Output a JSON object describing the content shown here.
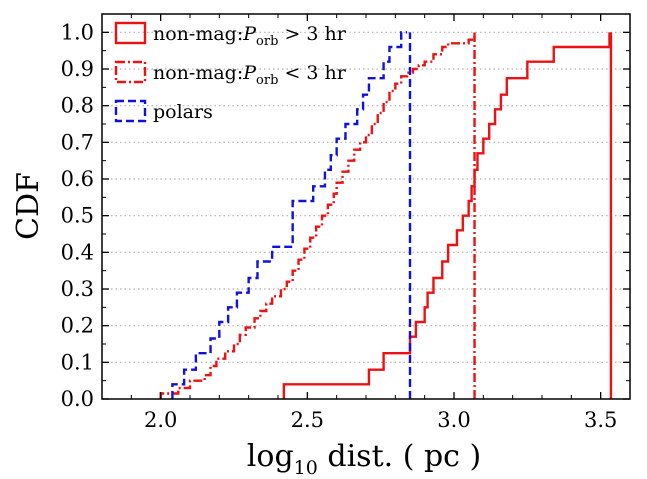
{
  "chart_data": {
    "type": "line",
    "step": true,
    "xlabel_parts": {
      "main": "log",
      "sub": "10",
      "rest": " dist. ( pc )"
    },
    "ylabel": "CDF",
    "xlim": [
      1.8,
      3.6
    ],
    "ylim": [
      0.0,
      1.05
    ],
    "xticks": [
      "2.0",
      "2.5",
      "3.0",
      "3.5"
    ],
    "yticks": [
      "0.0",
      "0.1",
      "0.2",
      "0.3",
      "0.4",
      "0.5",
      "0.6",
      "0.7",
      "0.8",
      "0.9",
      "1.0"
    ],
    "grid": "horizontal-dotted",
    "legend_position": "top-left",
    "series": [
      {
        "key": "nonmag_long",
        "legend": {
          "prefix": "non-mag:",
          "P": "P",
          "sub": "orb",
          "rel": " > 3 hr"
        },
        "color": "#ee1111",
        "linestyle": "solid",
        "x": [
          2.42,
          2.71,
          2.76,
          2.85,
          2.87,
          2.9,
          2.91,
          2.93,
          2.96,
          2.98,
          3.01,
          3.03,
          3.05,
          3.06,
          3.07,
          3.08,
          3.1,
          3.12,
          3.14,
          3.16,
          3.18,
          3.19,
          3.2,
          3.25,
          3.29,
          3.34,
          3.53
        ],
        "y": [
          0.04,
          0.08,
          0.125,
          0.17,
          0.21,
          0.25,
          0.29,
          0.33,
          0.375,
          0.42,
          0.46,
          0.5,
          0.54,
          0.58,
          0.625,
          0.67,
          0.71,
          0.75,
          0.79,
          0.83,
          0.875,
          0.875,
          0.875,
          0.92,
          0.92,
          0.96,
          1.0
        ]
      },
      {
        "key": "nonmag_short",
        "legend": {
          "prefix": "non-mag:",
          "P": "P",
          "sub": "orb",
          "rel": " < 3 hr"
        },
        "color": "#ee1111",
        "linestyle": "dashdot",
        "x": [
          2.0,
          2.06,
          2.1,
          2.15,
          2.17,
          2.19,
          2.22,
          2.25,
          2.27,
          2.29,
          2.32,
          2.34,
          2.36,
          2.38,
          2.41,
          2.43,
          2.45,
          2.47,
          2.49,
          2.51,
          2.53,
          2.55,
          2.57,
          2.59,
          2.6,
          2.62,
          2.64,
          2.66,
          2.68,
          2.7,
          2.72,
          2.74,
          2.76,
          2.78,
          2.8,
          2.82,
          2.84,
          2.86,
          2.88,
          2.9,
          2.93,
          2.96,
          2.98,
          3.05,
          3.07
        ],
        "y": [
          0.015,
          0.03,
          0.05,
          0.065,
          0.09,
          0.11,
          0.13,
          0.15,
          0.175,
          0.195,
          0.22,
          0.24,
          0.26,
          0.28,
          0.3,
          0.32,
          0.35,
          0.38,
          0.41,
          0.44,
          0.47,
          0.5,
          0.53,
          0.56,
          0.59,
          0.62,
          0.65,
          0.68,
          0.7,
          0.72,
          0.75,
          0.78,
          0.81,
          0.84,
          0.86,
          0.88,
          0.89,
          0.9,
          0.91,
          0.92,
          0.94,
          0.96,
          0.97,
          0.98,
          1.0
        ]
      },
      {
        "key": "polars",
        "legend": {
          "prefix": "polars"
        },
        "color": "#1111dd",
        "linestyle": "dashed",
        "x": [
          2.04,
          2.08,
          2.12,
          2.17,
          2.2,
          2.23,
          2.26,
          2.3,
          2.33,
          2.38,
          2.45,
          2.52,
          2.56,
          2.58,
          2.6,
          2.63,
          2.67,
          2.69,
          2.71,
          2.72,
          2.74,
          2.76,
          2.78,
          2.8,
          2.82,
          2.84
        ],
        "y": [
          0.04,
          0.08,
          0.125,
          0.165,
          0.21,
          0.25,
          0.29,
          0.33,
          0.375,
          0.415,
          0.54,
          0.58,
          0.625,
          0.665,
          0.71,
          0.75,
          0.79,
          0.83,
          0.875,
          0.875,
          0.875,
          0.92,
          0.96,
          0.96,
          1.0,
          1.0
        ]
      }
    ],
    "vlines": [
      {
        "series": "polars",
        "x": 2.85
      },
      {
        "series": "nonmag_short",
        "x": 3.07
      },
      {
        "series": "nonmag_long",
        "x": 3.535
      }
    ]
  }
}
